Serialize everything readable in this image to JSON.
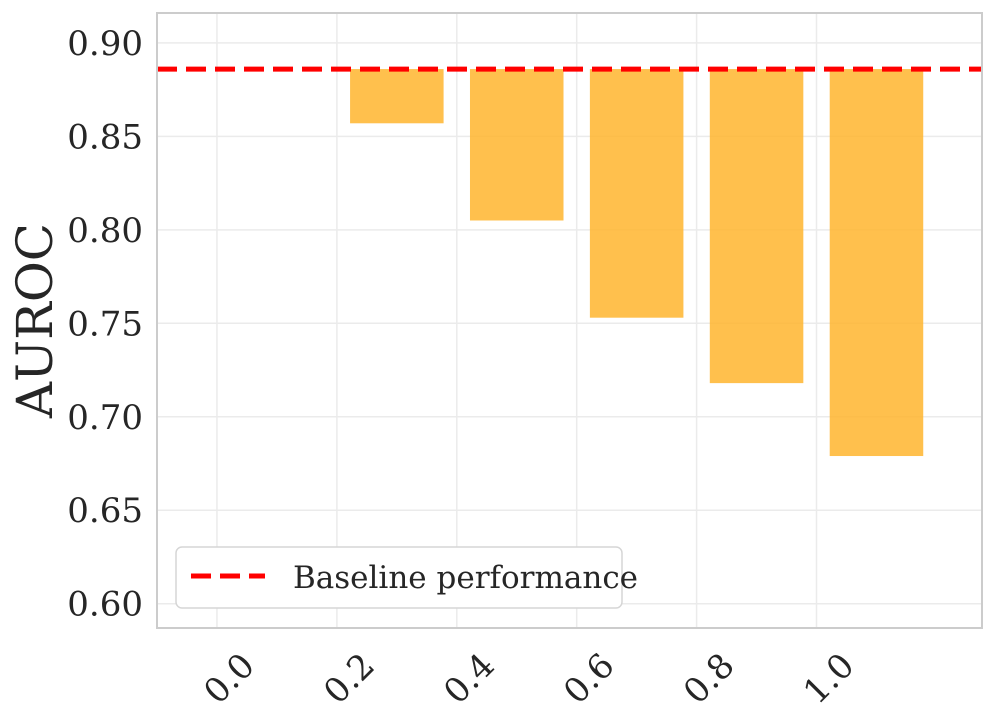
{
  "chart_data": {
    "type": "bar",
    "title": "",
    "xlabel": "",
    "ylabel": "AUROC",
    "categories": [
      "0.0",
      "0.2",
      "0.4",
      "0.6",
      "0.8",
      "1.0"
    ],
    "values": [
      0.886,
      0.857,
      0.805,
      0.753,
      0.718,
      0.679
    ],
    "bar_base": 0.886,
    "baseline": {
      "name": "Baseline performance",
      "value": 0.886
    },
    "ylim": [
      0.587,
      0.916
    ],
    "yticks": [
      "0.60",
      "0.65",
      "0.70",
      "0.75",
      "0.80",
      "0.85",
      "0.90"
    ],
    "ytick_values": [
      0.6,
      0.65,
      0.7,
      0.75,
      0.8,
      0.85,
      0.9
    ],
    "grid": true,
    "legend_position": "bottom-left",
    "x_tick_rotation_deg": 45,
    "colors": {
      "bar": "#ffb52e",
      "baseline": "#ff0000",
      "grid": "#ebebeb",
      "frame": "#cccccc",
      "legend_border": "#d6d6d6",
      "text": "#262626"
    }
  }
}
